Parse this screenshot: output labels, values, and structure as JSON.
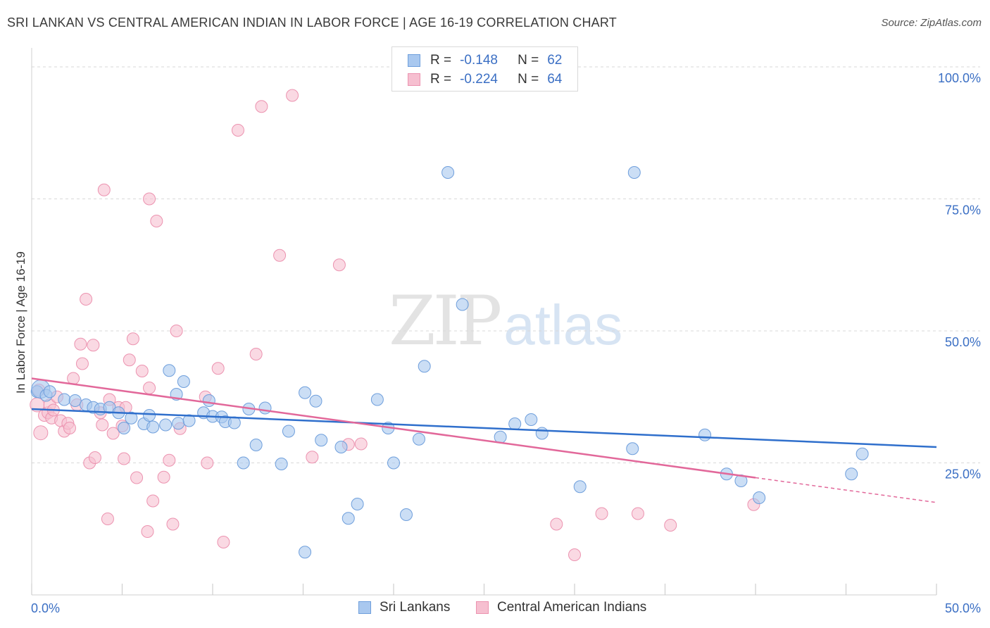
{
  "header": {
    "title": "SRI LANKAN VS CENTRAL AMERICAN INDIAN IN LABOR FORCE | AGE 16-19 CORRELATION CHART",
    "source": "Source: ZipAtlas.com"
  },
  "watermark": {
    "part1": "ZIP",
    "part2": "atlas"
  },
  "legend": {
    "r_label": "R =",
    "n_label": "N =",
    "series": [
      {
        "r_value": "-0.148",
        "n_value": "62"
      },
      {
        "r_value": "-0.224",
        "n_value": "64"
      }
    ]
  },
  "bottom_legend": [
    "Sri Lankans",
    "Central American Indians"
  ],
  "colors": {
    "blue_fill": "#a9c8ef",
    "blue_stroke": "#6f9fdc",
    "blue_line": "#2f6fcc",
    "pink_fill": "#f6bfd0",
    "pink_stroke": "#ec93b0",
    "pink_line": "#e2689a",
    "axis_text": "#3b6fc4",
    "grid": "#d9d9d9"
  },
  "chart_data": {
    "type": "scatter",
    "title": "SRI LANKAN VS CENTRAL AMERICAN INDIAN IN LABOR FORCE | AGE 16-19 CORRELATION CHART",
    "xlabel": "",
    "ylabel": "In Labor Force | Age 16-19",
    "x_tick_labels": [
      "0.0%",
      "50.0%"
    ],
    "y_tick_labels": [
      "25.0%",
      "50.0%",
      "75.0%",
      "100.0%"
    ],
    "y_ticks": [
      25,
      50,
      75,
      100
    ],
    "xlim": [
      0,
      50
    ],
    "ylim": [
      0,
      102
    ],
    "grid": true,
    "legend_position": "top-center",
    "series": [
      {
        "name": "Sri Lankans",
        "r": -0.148,
        "n": 62,
        "trend": {
          "x0": 0,
          "y0": 35.2,
          "x1": 50,
          "y1": 28.0
        },
        "points": [
          [
            0.3,
            38.5
          ],
          [
            0.5,
            39.0
          ],
          [
            0.8,
            37.8
          ],
          [
            1.0,
            38.5
          ],
          [
            1.8,
            37.0
          ],
          [
            2.4,
            36.8
          ],
          [
            3.0,
            36.0
          ],
          [
            3.4,
            35.5
          ],
          [
            3.8,
            35.2
          ],
          [
            4.3,
            35.5
          ],
          [
            4.8,
            34.5
          ],
          [
            5.1,
            31.6
          ],
          [
            5.5,
            33.5
          ],
          [
            6.2,
            32.4
          ],
          [
            6.5,
            34.0
          ],
          [
            6.7,
            31.8
          ],
          [
            7.4,
            32.2
          ],
          [
            7.6,
            42.5
          ],
          [
            8.1,
            32.5
          ],
          [
            8.4,
            40.4
          ],
          [
            8.7,
            33.0
          ],
          [
            9.5,
            34.5
          ],
          [
            9.8,
            36.8
          ],
          [
            10.0,
            33.8
          ],
          [
            10.5,
            33.7
          ],
          [
            10.7,
            32.8
          ],
          [
            11.2,
            32.6
          ],
          [
            11.7,
            25.0
          ],
          [
            12.0,
            35.2
          ],
          [
            12.4,
            28.4
          ],
          [
            12.9,
            35.4
          ],
          [
            13.8,
            24.8
          ],
          [
            14.2,
            31.0
          ],
          [
            15.1,
            38.3
          ],
          [
            15.7,
            36.7
          ],
          [
            16.0,
            29.3
          ],
          [
            17.1,
            28.0
          ],
          [
            17.5,
            14.5
          ],
          [
            18.0,
            17.2
          ],
          [
            19.1,
            37.0
          ],
          [
            19.7,
            31.6
          ],
          [
            20.0,
            25.0
          ],
          [
            20.7,
            15.2
          ],
          [
            21.4,
            29.5
          ],
          [
            21.7,
            43.3
          ],
          [
            23.0,
            80.0
          ],
          [
            23.8,
            55.0
          ],
          [
            25.9,
            29.9
          ],
          [
            26.7,
            32.4
          ],
          [
            27.6,
            33.2
          ],
          [
            28.2,
            30.6
          ],
          [
            30.3,
            20.5
          ],
          [
            33.2,
            27.7
          ],
          [
            33.3,
            80.0
          ],
          [
            37.2,
            30.3
          ],
          [
            38.4,
            22.9
          ],
          [
            39.2,
            21.6
          ],
          [
            40.2,
            18.4
          ],
          [
            45.3,
            22.9
          ],
          [
            45.9,
            26.7
          ],
          [
            15.1,
            8.1
          ],
          [
            8.0,
            38.0
          ]
        ]
      },
      {
        "name": "Central American Indians",
        "r": -0.224,
        "n": 64,
        "trend": {
          "x0": 0,
          "y0": 41.0,
          "x1": 40.0,
          "y1": 22.2,
          "dash_to_x": 50,
          "dash_to_y": 17.5
        },
        "points": [
          [
            0.3,
            36.0
          ],
          [
            0.5,
            30.7
          ],
          [
            0.7,
            34.0
          ],
          [
            0.9,
            34.5
          ],
          [
            1.0,
            36.0
          ],
          [
            1.1,
            33.5
          ],
          [
            1.2,
            35.0
          ],
          [
            1.4,
            37.5
          ],
          [
            1.6,
            33.0
          ],
          [
            1.8,
            31.0
          ],
          [
            2.0,
            32.5
          ],
          [
            2.1,
            31.6
          ],
          [
            2.3,
            41.0
          ],
          [
            2.5,
            36.0
          ],
          [
            2.7,
            47.5
          ],
          [
            2.8,
            43.8
          ],
          [
            3.0,
            56.0
          ],
          [
            3.2,
            25.0
          ],
          [
            3.4,
            47.3
          ],
          [
            3.5,
            26.0
          ],
          [
            3.8,
            34.5
          ],
          [
            3.9,
            32.2
          ],
          [
            4.0,
            76.7
          ],
          [
            4.2,
            14.4
          ],
          [
            4.3,
            37.0
          ],
          [
            4.5,
            30.6
          ],
          [
            4.8,
            35.5
          ],
          [
            5.0,
            32.0
          ],
          [
            5.1,
            25.8
          ],
          [
            5.2,
            35.5
          ],
          [
            5.4,
            44.5
          ],
          [
            5.6,
            48.5
          ],
          [
            5.8,
            22.2
          ],
          [
            6.1,
            42.4
          ],
          [
            6.4,
            12.0
          ],
          [
            6.5,
            39.2
          ],
          [
            6.5,
            75.0
          ],
          [
            6.7,
            17.8
          ],
          [
            6.9,
            70.8
          ],
          [
            7.3,
            22.3
          ],
          [
            7.6,
            25.5
          ],
          [
            7.8,
            13.4
          ],
          [
            8.0,
            50.0
          ],
          [
            8.2,
            31.5
          ],
          [
            9.6,
            37.5
          ],
          [
            9.7,
            25.0
          ],
          [
            10.3,
            42.9
          ],
          [
            10.6,
            10.0
          ],
          [
            11.4,
            88.0
          ],
          [
            12.4,
            45.6
          ],
          [
            12.7,
            92.5
          ],
          [
            13.7,
            64.3
          ],
          [
            14.4,
            94.6
          ],
          [
            15.5,
            26.1
          ],
          [
            17.0,
            62.5
          ],
          [
            17.5,
            28.5
          ],
          [
            18.2,
            28.6
          ],
          [
            29.0,
            13.4
          ],
          [
            30.0,
            7.6
          ],
          [
            31.5,
            15.4
          ],
          [
            33.5,
            15.4
          ],
          [
            35.3,
            13.2
          ],
          [
            39.9,
            17.1
          ],
          [
            0.4,
            38.8
          ]
        ]
      }
    ]
  }
}
